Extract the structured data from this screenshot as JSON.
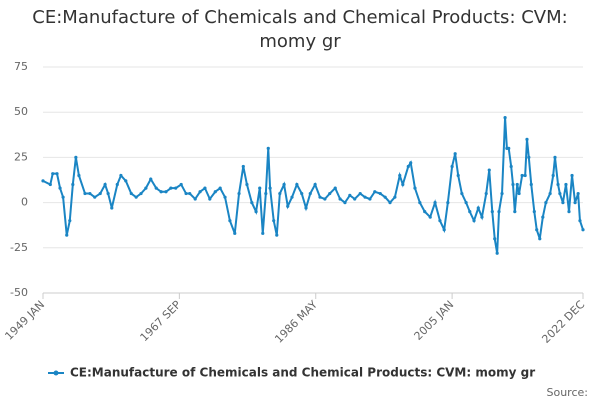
{
  "chart_data": {
    "type": "line",
    "title": "CE:Manufacture of Chemicals and Chemical Products: CVM: momy gr",
    "source": "Source:",
    "color": "#1a85c4",
    "grid": true,
    "ylim": [
      -50,
      75
    ],
    "yticks": [
      -50,
      -25,
      0,
      25,
      50,
      75
    ],
    "xlim": [
      "1949 JAN",
      "2022 DEC"
    ],
    "xticks": [
      "1949 JAN",
      "1967 SEP",
      "1986 MAY",
      "2005 JAN",
      "2022 DEC"
    ],
    "x": [
      "1949 JAN",
      "1950 JAN",
      "1950 MAY",
      "1950 DEC",
      "1951 MAY",
      "1951 OCT",
      "1952 APR",
      "1952 SEP",
      "1953 FEB",
      "1953 JUL",
      "1953 DEC",
      "1954 OCT",
      "1955 JUN",
      "1956 FEB",
      "1956 NOV",
      "1957 JUL",
      "1957 DEC",
      "1958 JUN",
      "1959 MAR",
      "1959 SEP",
      "1960 MAY",
      "1961 FEB",
      "1961 OCT",
      "1962 JUN",
      "1963 FEB",
      "1963 OCT",
      "1964 JUL",
      "1965 MAR",
      "1965 NOV",
      "1966 JUL",
      "1967 MAR",
      "1967 DEC",
      "1968 AUG",
      "1969 FEB",
      "1969 NOV",
      "1970 JUL",
      "1971 MAR",
      "1971 NOV",
      "1972 AUG",
      "1973 APR",
      "1973 DEC",
      "1974 AUG",
      "1975 APR",
      "1975 NOV",
      "1976 JUN",
      "1976 DEC",
      "1977 AUG",
      "1978 MAR",
      "1978 SEP",
      "1979 FEB",
      "1979 JUL",
      "1979 NOV",
      "1980 FEB",
      "1980 AUG",
      "1981 JAN",
      "1981 JUN",
      "1982 JAN",
      "1982 JUL",
      "1983 FEB",
      "1983 OCT",
      "1984 JUN",
      "1985 JAN",
      "1985 AUG",
      "1986 APR",
      "1986 DEC",
      "1987 AUG",
      "1988 APR",
      "1989 JAN",
      "1989 SEP",
      "1990 MAY",
      "1991 JAN",
      "1991 SEP",
      "1992 JUN",
      "1993 FEB",
      "1993 OCT",
      "1994 JUN",
      "1995 MAR",
      "1995 NOV",
      "1996 JUL",
      "1997 MAR",
      "1997 NOV",
      "1998 APR",
      "1999 JAN",
      "1999 MAY",
      "1999 DEC",
      "2000 AUG",
      "2001 APR",
      "2002 JAN",
      "2002 SEP",
      "2003 MAY",
      "2003 DEC",
      "2004 JUN",
      "2005 JAN",
      "2005 JUN",
      "2005 NOV",
      "2006 MAY",
      "2006 DEC",
      "2007 JUN",
      "2008 JAN",
      "2008 AUG",
      "2009 FEB",
      "2009 SEP",
      "2010 FEB",
      "2010 JUL",
      "2010 NOV",
      "2011 MAR",
      "2011 JUN",
      "2011 NOV",
      "2012 APR",
      "2012 JUL",
      "2012 OCT",
      "2013 FEB",
      "2013 MAY",
      "2013 AUG",
      "2013 DEC",
      "2014 MAR",
      "2014 AUG",
      "2015 JAN",
      "2015 APR",
      "2015 JUL",
      "2015 NOV",
      "2016 APR",
      "2016 AUG",
      "2017 JAN",
      "2017 JUN",
      "2017 NOV",
      "2018 JUN",
      "2018 NOV",
      "2019 FEB",
      "2019 JUL",
      "2019 OCT",
      "2020 MAR",
      "2020 AUG",
      "2021 JAN",
      "2021 JUN",
      "2021 NOV",
      "2022 APR",
      "2022 JUL",
      "2022 DEC"
    ],
    "series": [
      {
        "name": "CE:Manufacture of Chemicals and Chemical Products: CVM: momy gr",
        "color": "#1a85c4",
        "values": [
          12,
          10,
          16,
          16,
          8,
          3,
          -18,
          -10,
          10,
          25,
          15,
          5,
          5,
          3,
          5,
          10,
          5,
          -3,
          10,
          15,
          12,
          5,
          3,
          5,
          8,
          13,
          8,
          6,
          6,
          8,
          8,
          10,
          5,
          5,
          2,
          6,
          8,
          2,
          6,
          8,
          3,
          -10,
          -17,
          5,
          20,
          10,
          0,
          -5,
          8,
          -17,
          5,
          30,
          8,
          -10,
          -18,
          5,
          10,
          -2,
          3,
          10,
          5,
          -3,
          5,
          10,
          3,
          2,
          5,
          8,
          2,
          0,
          4,
          2,
          5,
          3,
          2,
          6,
          5,
          3,
          0,
          3,
          15,
          10,
          20,
          22,
          8,
          0,
          -5,
          -8,
          0,
          -10,
          -15,
          0,
          20,
          27,
          15,
          5,
          0,
          -5,
          -10,
          -3,
          -8,
          5,
          18,
          -5,
          -20,
          -28,
          -5,
          5,
          47,
          30,
          30,
          20,
          10,
          -5,
          10,
          5,
          15,
          15,
          35,
          25,
          10,
          -5,
          -15,
          -20,
          -8,
          0,
          5,
          15,
          25,
          10,
          5,
          0,
          10,
          -5,
          15,
          0,
          5,
          -10,
          -15
        ]
      }
    ]
  }
}
